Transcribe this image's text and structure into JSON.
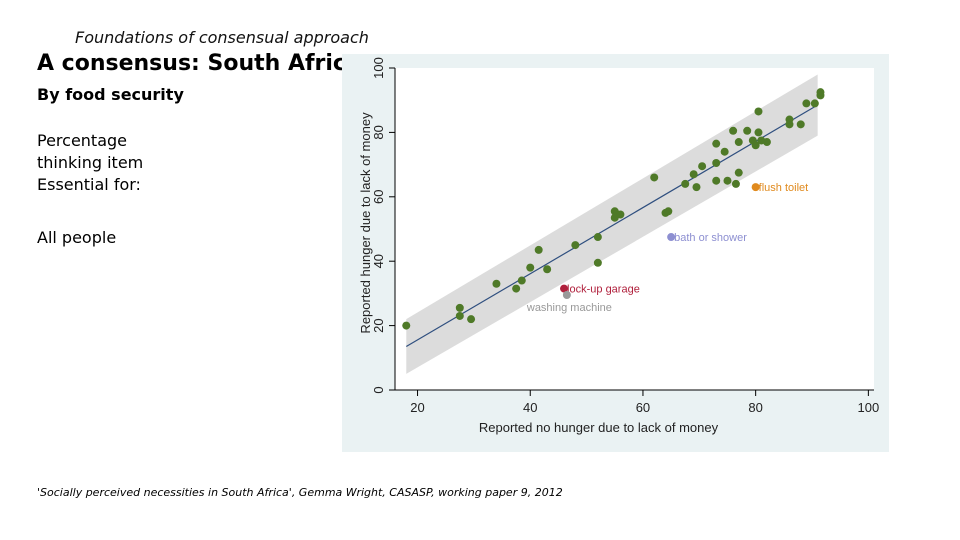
{
  "slide": {
    "kicker": "Foundations of consensual approach",
    "title": "A consensus: South Africa",
    "subtitle": "By food security",
    "paragraph": [
      "Percentage",
      "thinking item",
      "Essential for:"
    ],
    "group": "All people",
    "citation": "'Socially perceived necessities in South Africa', Gemma Wright, CASASP, working paper 9, 2012"
  },
  "chart_data": {
    "type": "scatter",
    "xlabel": "Reported no hunger due to lack of money",
    "ylabel": "Reported hunger due to lack of money",
    "xlim": [
      16,
      101
    ],
    "ylim": [
      0,
      100
    ],
    "xticks": [
      "20",
      "40",
      "60",
      "80",
      "100"
    ],
    "yticks": [
      "0",
      "20",
      "40",
      "60",
      "80",
      "100"
    ],
    "fit_line": {
      "x": [
        18,
        91
      ],
      "y": [
        13.5,
        88.5
      ]
    },
    "ci_band": {
      "x": [
        18,
        91
      ],
      "lower": [
        5,
        79
      ],
      "upper": [
        22,
        98
      ]
    },
    "colors": {
      "point": "#4f7a28",
      "fit": "#2f4f7f",
      "band": "#dcdcdc",
      "background": "#eaf2f3",
      "axis": "#000000"
    },
    "points": [
      [
        18,
        20
      ],
      [
        27.5,
        25.5
      ],
      [
        27.5,
        23
      ],
      [
        29.5,
        22
      ],
      [
        34,
        33
      ],
      [
        37.5,
        31.5
      ],
      [
        38.5,
        34
      ],
      [
        40,
        38
      ],
      [
        41.5,
        43.5
      ],
      [
        43,
        37.5
      ],
      [
        48,
        45
      ],
      [
        52,
        47.5
      ],
      [
        52,
        39.5
      ],
      [
        55,
        55.5
      ],
      [
        55,
        53.5
      ],
      [
        56,
        54.5
      ],
      [
        62,
        66
      ],
      [
        64,
        55
      ],
      [
        64.5,
        55.5
      ],
      [
        67.5,
        64
      ],
      [
        69,
        67
      ],
      [
        69.5,
        63
      ],
      [
        70.5,
        69.5
      ],
      [
        73,
        76.5
      ],
      [
        73,
        70.5
      ],
      [
        73,
        65
      ],
      [
        74.5,
        74
      ],
      [
        75,
        65
      ],
      [
        76,
        80.5
      ],
      [
        76.5,
        64
      ],
      [
        77,
        67.5
      ],
      [
        77,
        77
      ],
      [
        78.5,
        80.5
      ],
      [
        79.5,
        77.5
      ],
      [
        80,
        76
      ],
      [
        80.5,
        86.5
      ],
      [
        80.5,
        80
      ],
      [
        81,
        77.5
      ],
      [
        82,
        77
      ],
      [
        86,
        82.5
      ],
      [
        86,
        84
      ],
      [
        88,
        82.5
      ],
      [
        89,
        89
      ],
      [
        90.5,
        89
      ],
      [
        91.5,
        91.5
      ],
      [
        91.5,
        92.5
      ]
    ],
    "highlights": [
      {
        "label": "flush toilet",
        "x": 80,
        "y": 63,
        "color": "#e08a1e"
      },
      {
        "label": "bath or shower",
        "x": 65,
        "y": 47.5,
        "color": "#8d8fd1"
      },
      {
        "label": "lock-up garage",
        "x": 46,
        "y": 31.5,
        "color": "#b0203c"
      },
      {
        "label": "washing machine",
        "x": 46.5,
        "y": 29.5,
        "color": "#999999"
      }
    ]
  }
}
